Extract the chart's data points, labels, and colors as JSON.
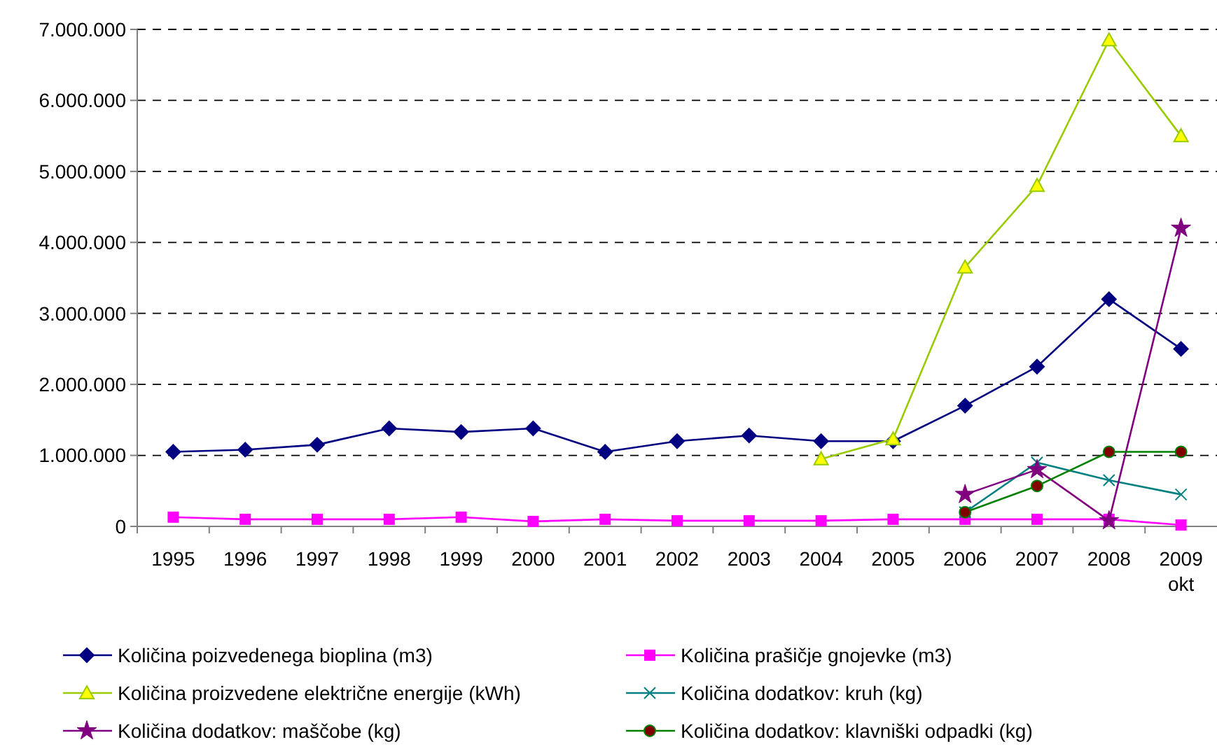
{
  "chart_data": {
    "type": "line",
    "categories": [
      "1995",
      "1996",
      "1997",
      "1998",
      "1999",
      "2000",
      "2001",
      "2002",
      "2003",
      "2004",
      "2005",
      "2006",
      "2007",
      "2008",
      "2009\nokt"
    ],
    "ylim": [
      0,
      7000000
    ],
    "yticks": [
      {
        "value": 0,
        "label": "0"
      },
      {
        "value": 1000000,
        "label": "1.000.000"
      },
      {
        "value": 2000000,
        "label": "2.000.000"
      },
      {
        "value": 3000000,
        "label": "3.000.000"
      },
      {
        "value": 4000000,
        "label": "4.000.000"
      },
      {
        "value": 5000000,
        "label": "5.000.000"
      },
      {
        "value": 6000000,
        "label": "6.000.000"
      },
      {
        "value": 7000000,
        "label": "7.000.000"
      }
    ],
    "grid": "y",
    "line_style": "solid",
    "legend": "bottom",
    "series": [
      {
        "name": "Količina poizvedenega bioplina (m3)",
        "color": "#000080",
        "marker": "diamond",
        "values": [
          1050000,
          1080000,
          1150000,
          1380000,
          1330000,
          1380000,
          1050000,
          1200000,
          1280000,
          1200000,
          1200000,
          1700000,
          2250000,
          3200000,
          2500000
        ]
      },
      {
        "name": "Količina prašičje gnojevke (m3)",
        "color": "#ff00ff",
        "marker": "square",
        "values": [
          130000,
          100000,
          100000,
          100000,
          130000,
          70000,
          100000,
          80000,
          80000,
          80000,
          100000,
          100000,
          100000,
          100000,
          20000
        ]
      },
      {
        "name": "Količina proizvedene električne energije (kWh)",
        "color": "#99cc00",
        "marker": "triangle",
        "values": [
          null,
          null,
          null,
          null,
          null,
          null,
          null,
          null,
          null,
          950000,
          1230000,
          3650000,
          4800000,
          6850000,
          5500000
        ]
      },
      {
        "name": "Količina dodatkov: kruh (kg)",
        "color": "#008080",
        "marker": "cross",
        "values": [
          null,
          null,
          null,
          null,
          null,
          null,
          null,
          null,
          null,
          null,
          null,
          200000,
          900000,
          650000,
          450000
        ]
      },
      {
        "name": "Količina dodatkov: maščobe (kg)",
        "color": "#800080",
        "marker": "star",
        "values": [
          null,
          null,
          null,
          null,
          null,
          null,
          null,
          null,
          null,
          null,
          null,
          450000,
          800000,
          80000,
          4200000
        ]
      },
      {
        "name": "Količina dodatkov: klavniški odpadki (kg)",
        "color": "#008000",
        "marker": "circle",
        "values": [
          null,
          null,
          null,
          null,
          null,
          null,
          null,
          null,
          null,
          null,
          null,
          200000,
          570000,
          1050000,
          1050000
        ]
      }
    ]
  }
}
